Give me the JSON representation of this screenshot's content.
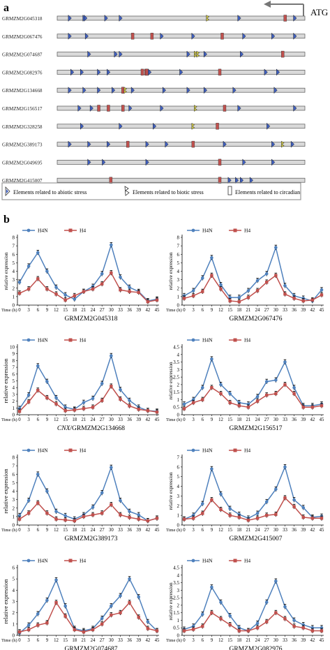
{
  "panel_a": {
    "label": "a",
    "atg_label": "ATG",
    "genes": [
      {
        "name": "GRMZM2G045318",
        "elements": [
          [
            "a",
            0.04
          ],
          [
            "a",
            0.1
          ],
          [
            "a",
            0.105
          ],
          [
            "a",
            0.19
          ],
          [
            "a",
            0.25
          ],
          [
            "b",
            0.61
          ],
          [
            "a",
            0.74
          ],
          [
            "c",
            0.93
          ],
          [
            "a",
            0.97
          ]
        ]
      },
      {
        "name": "GRMZM2G067476",
        "elements": [
          [
            "a",
            0.04
          ],
          [
            "a",
            0.11
          ],
          [
            "c",
            0.3
          ],
          [
            "c",
            0.38
          ],
          [
            "a",
            0.42
          ],
          [
            "a",
            0.55
          ],
          [
            "c",
            0.67
          ],
          [
            "a",
            0.76
          ],
          [
            "a",
            0.88
          ],
          [
            "a",
            0.97
          ]
        ]
      },
      {
        "name": "GRMZM2G074687",
        "elements": [
          [
            "a",
            0.12
          ],
          [
            "a",
            0.23
          ],
          [
            "a",
            0.25
          ],
          [
            "a",
            0.53
          ],
          [
            "b",
            0.56
          ],
          [
            "b",
            0.57
          ],
          [
            "a",
            0.6
          ],
          [
            "a",
            0.75
          ],
          [
            "c",
            0.92
          ]
        ]
      },
      {
        "name": "GRMZM2G082976",
        "elements": [
          [
            "a",
            0.05
          ],
          [
            "a",
            0.09
          ],
          [
            "a",
            0.16
          ],
          [
            "a",
            0.2
          ],
          [
            "c",
            0.34
          ],
          [
            "c",
            0.355
          ],
          [
            "c",
            0.36
          ],
          [
            "a",
            0.37
          ],
          [
            "a",
            0.5
          ],
          [
            "c",
            0.66
          ],
          [
            "a",
            0.85
          ],
          [
            "a",
            0.9
          ]
        ]
      },
      {
        "name": "GRMZM2G134668",
        "elements": [
          [
            "a",
            0.04
          ],
          [
            "a",
            0.1
          ],
          [
            "a",
            0.16
          ],
          [
            "a",
            0.22
          ],
          [
            "c",
            0.26
          ],
          [
            "b",
            0.27
          ],
          [
            "a",
            0.3
          ],
          [
            "a",
            0.43
          ],
          [
            "a",
            0.53
          ],
          [
            "a",
            0.6
          ],
          [
            "a",
            0.72
          ],
          [
            "a",
            0.89
          ]
        ]
      },
      {
        "name": "GRMZM2G156517",
        "elements": [
          [
            "a",
            0.08
          ],
          [
            "a",
            0.13
          ],
          [
            "c",
            0.16
          ],
          [
            "c",
            0.2
          ],
          [
            "c",
            0.26
          ],
          [
            "a",
            0.29
          ],
          [
            "a",
            0.42
          ],
          [
            "b",
            0.56
          ],
          [
            "c",
            0.68
          ],
          [
            "a",
            0.74
          ],
          [
            "a",
            0.97
          ]
        ]
      },
      {
        "name": "GRMZM2G328258",
        "elements": [
          [
            "a",
            0.09
          ],
          [
            "a",
            0.25
          ],
          [
            "a",
            0.39
          ],
          [
            "b",
            0.55
          ],
          [
            "c",
            0.65
          ],
          [
            "a",
            0.86
          ]
        ]
      },
      {
        "name": "GRMZM2G389173",
        "elements": [
          [
            "a",
            0.04
          ],
          [
            "a",
            0.12
          ],
          [
            "a",
            0.2
          ],
          [
            "c",
            0.28
          ],
          [
            "a",
            0.36
          ],
          [
            "a",
            0.44
          ],
          [
            "c",
            0.55
          ],
          [
            "a",
            0.68
          ],
          [
            "a",
            0.88
          ],
          [
            "b",
            0.92
          ],
          [
            "a",
            0.96
          ]
        ]
      },
      {
        "name": "GRMZM2G049695",
        "elements": [
          [
            "a",
            0.12
          ],
          [
            "a",
            0.18
          ],
          [
            "a",
            0.36
          ],
          [
            "c",
            0.66
          ],
          [
            "a",
            0.76
          ],
          [
            "a",
            0.88
          ]
        ]
      },
      {
        "name": "GRMZM2G415007",
        "elements": [
          [
            "c",
            0.21
          ],
          [
            "c",
            0.66
          ],
          [
            "a",
            0.7
          ],
          [
            "a",
            0.73
          ],
          [
            "a",
            0.75
          ],
          [
            "a",
            0.79
          ]
        ]
      }
    ],
    "legend": {
      "abiotic": "Elements related to abiotic stress",
      "biotic": "Elements related to biotic stress",
      "circadian": "Elements related to circadian"
    }
  },
  "panel_b": {
    "label": "b",
    "xlabel": "Time (h)"
  },
  "colors": {
    "h4n": "#4F81BD",
    "h4": "#C0504D",
    "abiotic_fill": "#3F5FBF",
    "biotic_fill": "#C8C040",
    "circadian_fill": "#C0504D",
    "track_fill": "#D9D9D9"
  },
  "chart_data": [
    {
      "type": "line",
      "title": "GRMZM2G045318",
      "xlabel": "Time (h)",
      "ylabel": "relative expression",
      "x": [
        0,
        3,
        6,
        9,
        12,
        15,
        18,
        21,
        24,
        27,
        30,
        33,
        36,
        39,
        42,
        45
      ],
      "ylim": [
        0,
        8
      ],
      "yticks": [
        0,
        1,
        2,
        3,
        4,
        5,
        6,
        7,
        8
      ],
      "series": [
        {
          "name": "H4N",
          "values": [
            2.7,
            4.6,
            6.2,
            4.0,
            2.1,
            1.2,
            0.7,
            1.6,
            2.2,
            3.7,
            7.1,
            3.3,
            2.1,
            1.6,
            0.5,
            0.7
          ]
        },
        {
          "name": "H4",
          "values": [
            1.4,
            1.9,
            3.1,
            1.9,
            1.3,
            0.6,
            1.1,
            1.6,
            1.9,
            2.5,
            3.8,
            1.8,
            1.6,
            1.5,
            0.4,
            0.6
          ]
        }
      ]
    },
    {
      "type": "line",
      "title": "GRMZM2G067476",
      "xlabel": "Time (h)",
      "ylabel": "relative expression",
      "x": [
        0,
        3,
        6,
        9,
        12,
        15,
        18,
        21,
        24,
        27,
        30,
        33,
        36,
        39,
        42,
        45
      ],
      "ylim": [
        0,
        8
      ],
      "yticks": [
        0,
        1,
        2,
        3,
        4,
        5,
        6,
        7,
        8
      ],
      "series": [
        {
          "name": "H4N",
          "values": [
            1.1,
            1.7,
            3.2,
            5.6,
            2.4,
            0.9,
            0.9,
            1.7,
            2.9,
            3.7,
            6.8,
            2.3,
            1.1,
            0.8,
            0.5,
            1.8
          ]
        },
        {
          "name": "H4",
          "values": [
            0.8,
            1.1,
            1.6,
            3.5,
            1.9,
            0.5,
            0.4,
            0.9,
            1.7,
            2.7,
            3.5,
            1.3,
            0.8,
            0.5,
            0.6,
            1.2
          ]
        }
      ]
    },
    {
      "type": "line",
      "title": "CNX/GRMZM2G134668",
      "title_italic": "CNX",
      "title_rest": "/GRMZM2G134668",
      "xlabel": "Time (h)",
      "ylabel": "relative expression",
      "x": [
        0,
        3,
        6,
        9,
        12,
        15,
        18,
        21,
        24,
        27,
        30,
        33,
        36,
        39,
        42,
        45
      ],
      "ylim": [
        0,
        10
      ],
      "yticks": [
        0,
        1,
        2,
        3,
        4,
        5,
        6,
        7,
        8,
        9,
        10
      ],
      "series": [
        {
          "name": "H4N",
          "values": [
            0.9,
            2.9,
            7.2,
            4.9,
            2.5,
            1.1,
            0.8,
            1.8,
            2.4,
            4.6,
            8.7,
            3.7,
            2.1,
            1.1,
            0.6,
            0.5
          ]
        },
        {
          "name": "H4",
          "values": [
            0.5,
            1.9,
            3.6,
            2.5,
            1.6,
            0.6,
            0.7,
            0.9,
            1.1,
            2.1,
            4.2,
            2.3,
            1.3,
            0.8,
            0.6,
            0.4
          ]
        }
      ]
    },
    {
      "type": "line",
      "title": "GRMZM2G156517",
      "xlabel": "Time (h)",
      "ylabel": "relative expression",
      "x": [
        0,
        3,
        6,
        9,
        12,
        15,
        18,
        21,
        24,
        27,
        30,
        33,
        36,
        39,
        42,
        45
      ],
      "ylim": [
        0,
        4.5
      ],
      "yticks": [
        0,
        0.5,
        1,
        1.5,
        2,
        2.5,
        3,
        3.5,
        4,
        4.5
      ],
      "series": [
        {
          "name": "H4N",
          "values": [
            0.7,
            1.0,
            1.8,
            3.7,
            2.0,
            1.4,
            0.8,
            0.7,
            1.2,
            2.2,
            2.3,
            3.5,
            1.8,
            0.6,
            0.6,
            0.7
          ]
        },
        {
          "name": "H4",
          "values": [
            0.4,
            0.8,
            1.0,
            1.8,
            1.4,
            0.8,
            0.6,
            0.5,
            0.9,
            1.3,
            1.4,
            2.0,
            1.4,
            0.5,
            0.5,
            0.6
          ]
        }
      ]
    },
    {
      "type": "line",
      "title": "GRMZM2G389173",
      "xlabel": "Time (h)",
      "ylabel": "relative expression",
      "x": [
        0,
        3,
        6,
        9,
        12,
        15,
        18,
        21,
        24,
        27,
        30,
        33,
        36,
        39,
        42,
        45
      ],
      "ylim": [
        0,
        8
      ],
      "yticks": [
        0,
        1,
        2,
        3,
        4,
        5,
        6,
        7,
        8
      ],
      "series": [
        {
          "name": "H4N",
          "values": [
            1.1,
            2.9,
            6.0,
            4.0,
            1.6,
            1.1,
            0.7,
            1.2,
            2.1,
            3.8,
            6.8,
            2.9,
            1.6,
            1.2,
            0.5,
            0.8
          ]
        },
        {
          "name": "H4",
          "values": [
            0.7,
            1.4,
            2.6,
            1.4,
            0.7,
            0.6,
            0.5,
            1.0,
            1.2,
            1.4,
            2.4,
            1.2,
            0.9,
            0.7,
            0.5,
            0.8
          ]
        }
      ]
    },
    {
      "type": "line",
      "title": "GRMZM2G415007",
      "xlabel": "Time (h)",
      "ylabel": "relative expression",
      "x": [
        0,
        3,
        6,
        9,
        12,
        15,
        18,
        21,
        24,
        27,
        30,
        33,
        36,
        39,
        42,
        45
      ],
      "ylim": [
        0,
        7
      ],
      "yticks": [
        0,
        1,
        2,
        3,
        4,
        5,
        6,
        7
      ],
      "series": [
        {
          "name": "H4N",
          "values": [
            0.6,
            1.0,
            2.2,
            5.8,
            3.2,
            1.7,
            1.1,
            0.7,
            1.2,
            2.4,
            3.7,
            6.0,
            2.6,
            1.8,
            0.8,
            0.9
          ]
        },
        {
          "name": "H4",
          "values": [
            0.6,
            0.7,
            1.2,
            2.6,
            1.6,
            1.0,
            0.8,
            0.5,
            0.7,
            1.0,
            1.1,
            2.8,
            1.9,
            0.8,
            0.7,
            0.7
          ]
        }
      ]
    },
    {
      "type": "line",
      "title": "GRMZM2G074687",
      "xlabel": "Time (h)",
      "ylabel": "relative expression",
      "x": [
        0,
        3,
        6,
        9,
        12,
        15,
        18,
        21,
        24,
        27,
        30,
        33,
        36,
        39,
        42,
        45
      ],
      "ylim": [
        0,
        6
      ],
      "yticks": [
        0,
        1,
        2,
        3,
        4,
        5,
        6
      ],
      "series": [
        {
          "name": "H4N",
          "values": [
            0.2,
            0.9,
            1.9,
            3.1,
            4.9,
            2.6,
            0.6,
            0.4,
            0.6,
            1.5,
            2.6,
            3.5,
            5.0,
            3.4,
            1.2,
            0.4
          ]
        },
        {
          "name": "H4",
          "values": [
            0.3,
            0.5,
            0.9,
            1.1,
            2.9,
            1.7,
            0.5,
            0.3,
            0.5,
            1.0,
            1.8,
            2.0,
            2.9,
            1.6,
            0.6,
            0.4
          ]
        }
      ]
    },
    {
      "type": "line",
      "title": "GRMZM2G082976",
      "xlabel": "Time (h)",
      "ylabel": "relative expression",
      "x": [
        0,
        3,
        6,
        9,
        12,
        15,
        18,
        21,
        24,
        27,
        30,
        33,
        36,
        39,
        42,
        45
      ],
      "ylim": [
        0,
        4.5
      ],
      "yticks": [
        0,
        0.5,
        1,
        1.5,
        2,
        2.5,
        3,
        3.5,
        4,
        4.5
      ],
      "series": [
        {
          "name": "H4N",
          "values": [
            0.4,
            0.6,
            1.4,
            3.2,
            2.2,
            1.3,
            0.5,
            0.3,
            0.8,
            2.2,
            3.6,
            1.9,
            1.0,
            0.7,
            0.5,
            0.5
          ]
        },
        {
          "name": "H4",
          "values": [
            0.3,
            0.4,
            0.6,
            1.5,
            1.1,
            0.7,
            0.3,
            0.3,
            0.5,
            0.9,
            1.5,
            1.1,
            0.6,
            0.5,
            0.3,
            0.3
          ]
        }
      ]
    }
  ]
}
